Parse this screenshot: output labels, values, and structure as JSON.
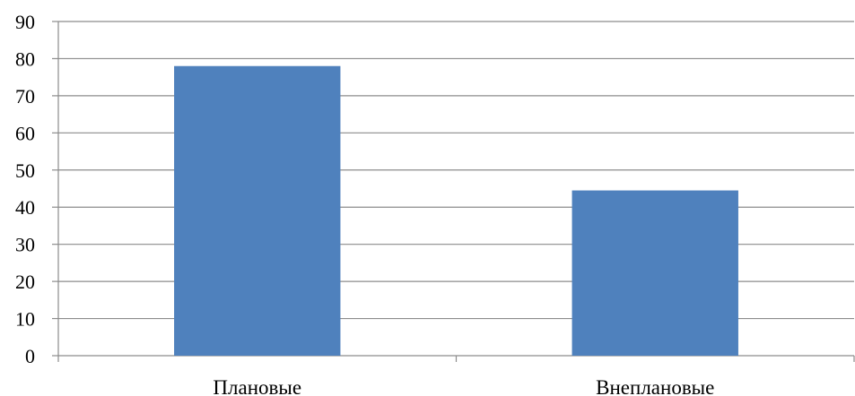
{
  "chart_data": {
    "type": "bar",
    "categories": [
      "Плановые",
      "Внеплановые"
    ],
    "values": [
      78,
      44.5
    ],
    "ylim": [
      0,
      90
    ],
    "yticks": [
      0,
      10,
      20,
      30,
      40,
      50,
      60,
      70,
      80,
      90
    ],
    "ytick_labels": [
      "0",
      "10",
      "20",
      "30",
      "40",
      "50",
      "60",
      "70",
      "80",
      "90"
    ],
    "grid": true,
    "legend": "none",
    "title": "",
    "xlabel": "",
    "ylabel": "",
    "bar_color": "#4f81bd"
  }
}
